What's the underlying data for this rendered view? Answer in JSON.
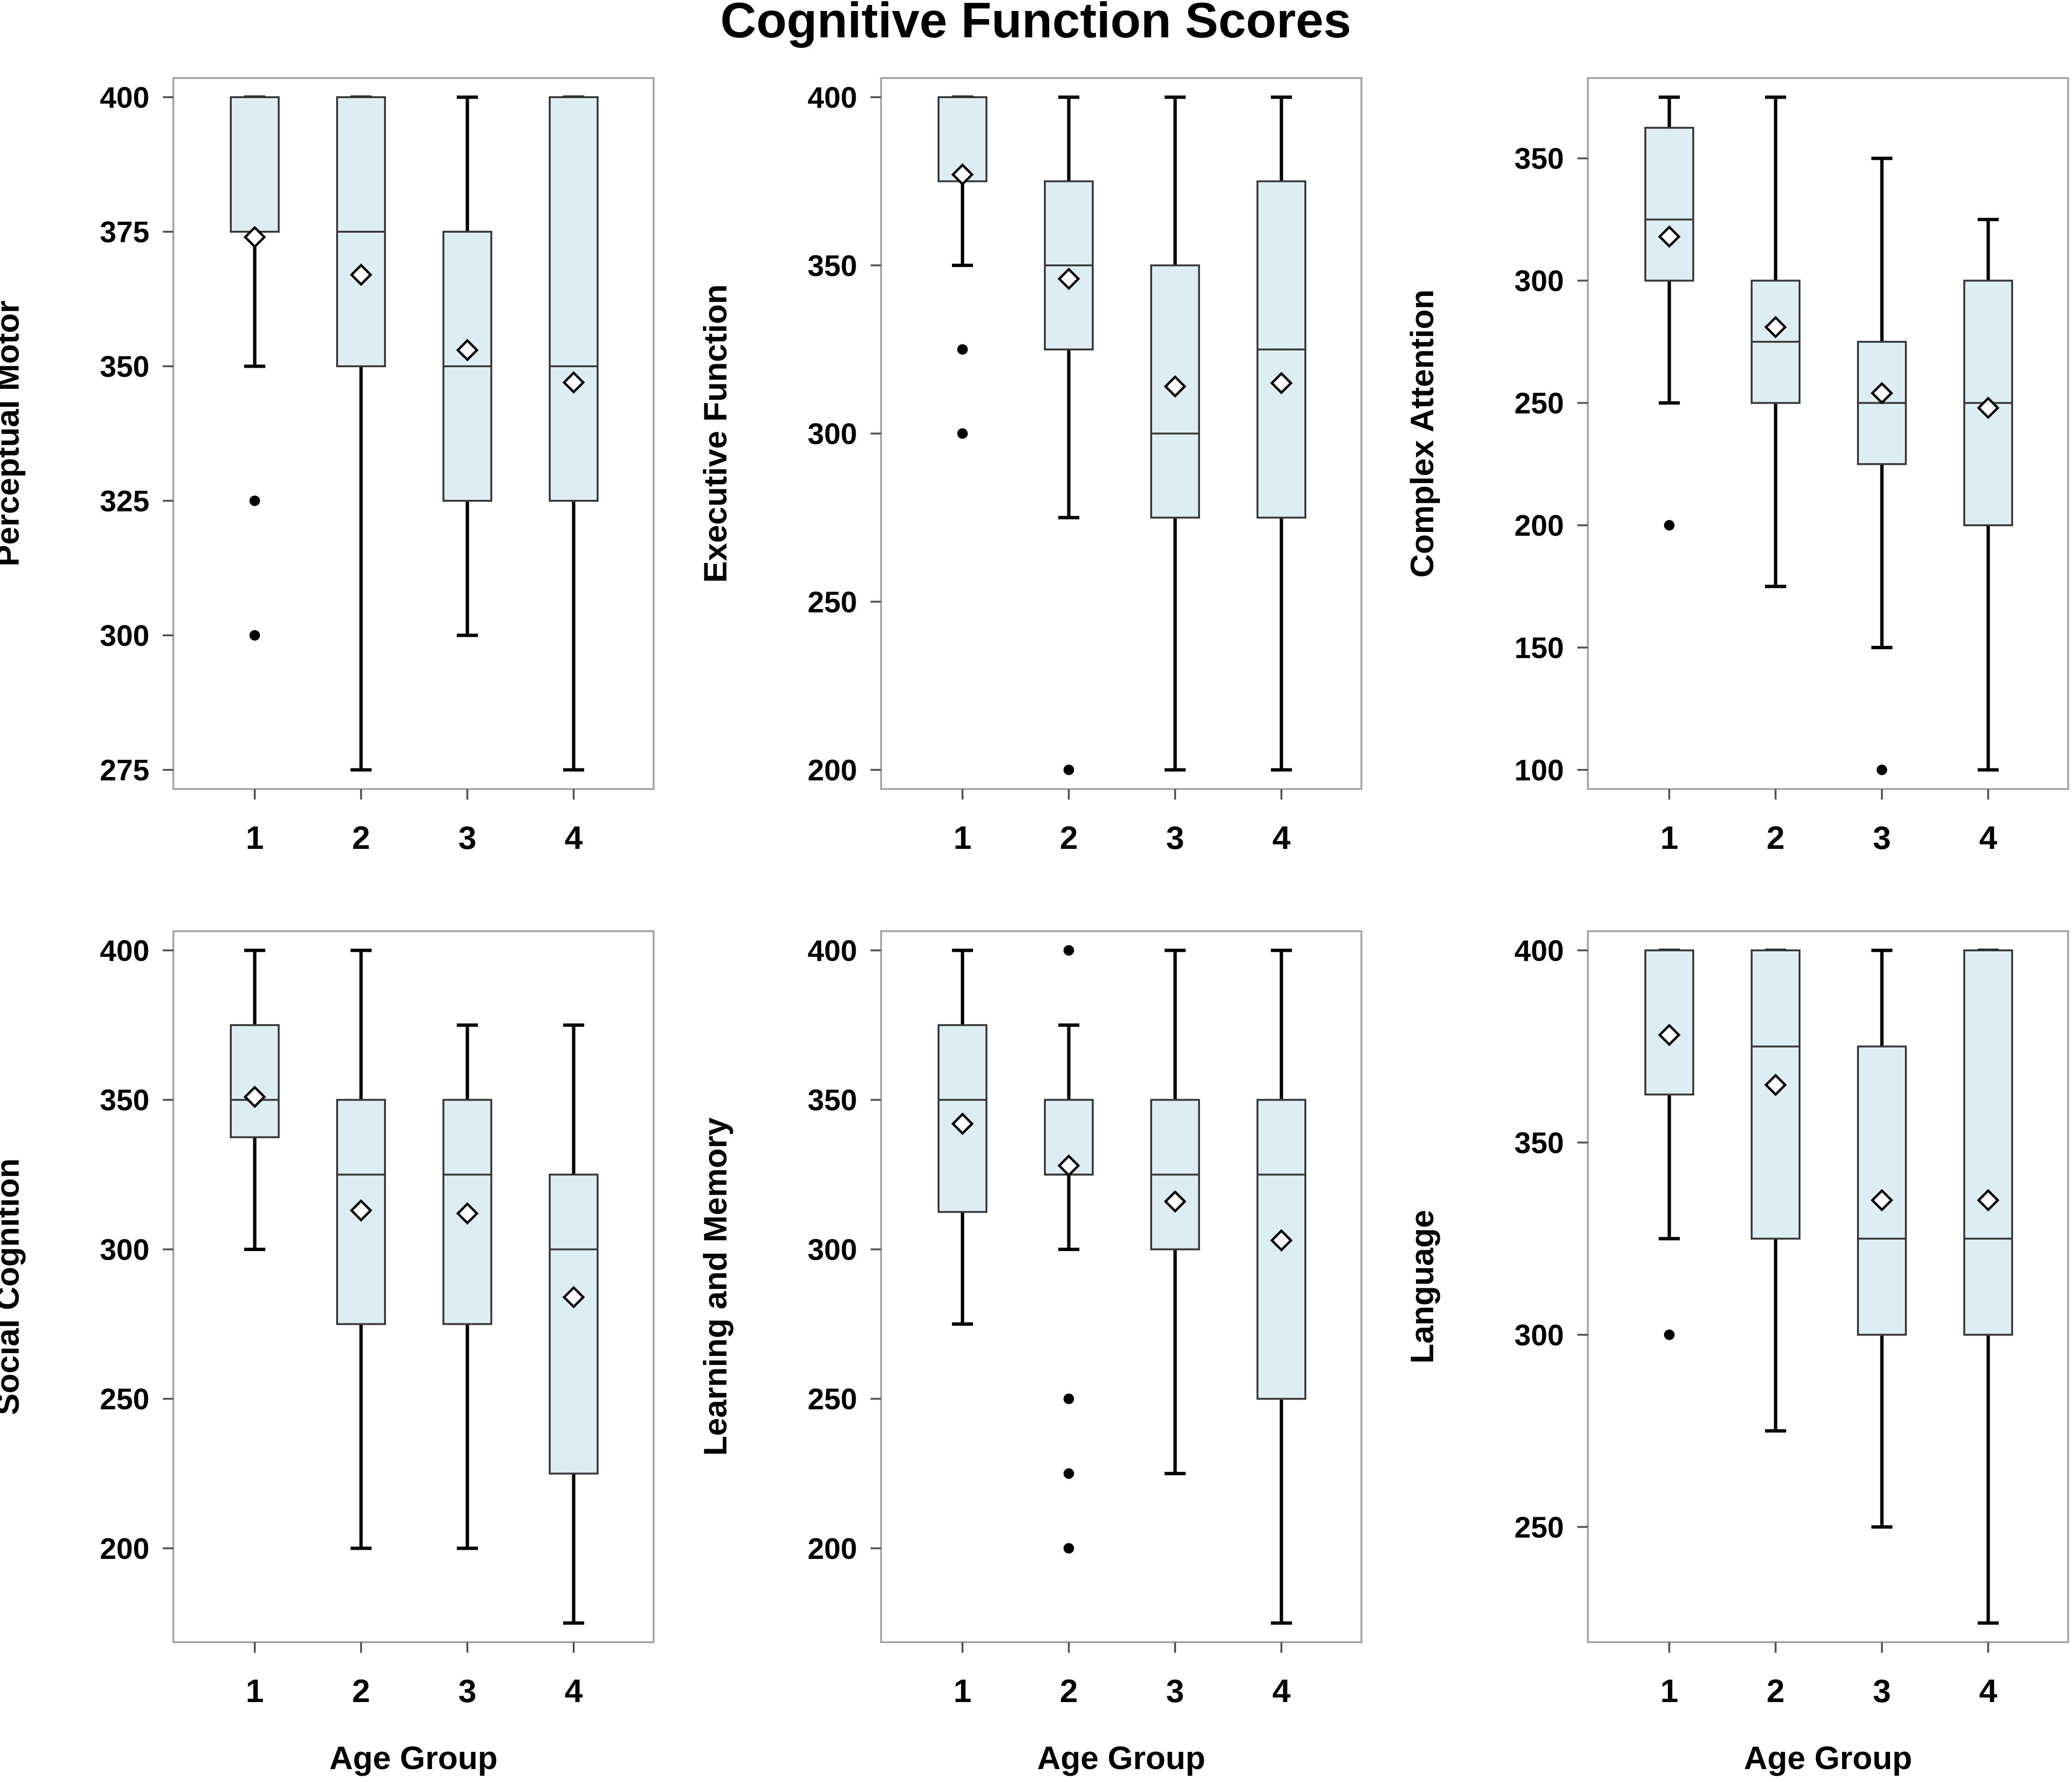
{
  "chart_data": {
    "type": "box",
    "title": "Cognitive Function Scores",
    "xlabel": "Age Group",
    "categories": [
      "1",
      "2",
      "3",
      "4"
    ],
    "panels": [
      {
        "ylabel": "Perceptual Motor",
        "ylim": [
          275,
          400
        ],
        "yticks": [
          275,
          300,
          325,
          350,
          375,
          400
        ],
        "groups": [
          {
            "group": "1",
            "whisker_low": 350,
            "q1": 375,
            "median": 400,
            "q3": 400,
            "whisker_high": 400,
            "mean": 374,
            "outliers": [
              325,
              300
            ]
          },
          {
            "group": "2",
            "whisker_low": 275,
            "q1": 350,
            "median": 375,
            "q3": 400,
            "whisker_high": 400,
            "mean": 367,
            "outliers": []
          },
          {
            "group": "3",
            "whisker_low": 300,
            "q1": 325,
            "median": 350,
            "q3": 375,
            "whisker_high": 400,
            "mean": 353,
            "outliers": []
          },
          {
            "group": "4",
            "whisker_low": 275,
            "q1": 325,
            "median": 350,
            "q3": 400,
            "whisker_high": 400,
            "mean": 347,
            "outliers": []
          }
        ]
      },
      {
        "ylabel": "Executive Function",
        "ylim": [
          200,
          400
        ],
        "yticks": [
          200,
          250,
          300,
          350,
          400
        ],
        "groups": [
          {
            "group": "1",
            "whisker_low": 350,
            "q1": 375,
            "median": 400,
            "q3": 400,
            "whisker_high": 400,
            "mean": 377,
            "outliers": [
              325,
              300
            ]
          },
          {
            "group": "2",
            "whisker_low": 275,
            "q1": 325,
            "median": 350,
            "q3": 375,
            "whisker_high": 400,
            "mean": 346,
            "outliers": [
              200
            ]
          },
          {
            "group": "3",
            "whisker_low": 200,
            "q1": 275,
            "median": 300,
            "q3": 350,
            "whisker_high": 400,
            "mean": 314,
            "outliers": []
          },
          {
            "group": "4",
            "whisker_low": 200,
            "q1": 275,
            "median": 325,
            "q3": 375,
            "whisker_high": 400,
            "mean": 315,
            "outliers": []
          }
        ]
      },
      {
        "ylabel": "Complex Attention",
        "ylim": [
          100,
          375
        ],
        "yticks": [
          100,
          150,
          200,
          250,
          300,
          350
        ],
        "groups": [
          {
            "group": "1",
            "whisker_low": 250,
            "q1": 300,
            "median": 325,
            "q3": 362.5,
            "whisker_high": 375,
            "mean": 318,
            "outliers": [
              200
            ]
          },
          {
            "group": "2",
            "whisker_low": 175,
            "q1": 250,
            "median": 275,
            "q3": 300,
            "whisker_high": 375,
            "mean": 281,
            "outliers": []
          },
          {
            "group": "3",
            "whisker_low": 150,
            "q1": 225,
            "median": 250,
            "q3": 275,
            "whisker_high": 350,
            "mean": 254,
            "outliers": [
              100
            ]
          },
          {
            "group": "4",
            "whisker_low": 100,
            "q1": 200,
            "median": 250,
            "q3": 300,
            "whisker_high": 325,
            "mean": 248,
            "outliers": []
          }
        ]
      },
      {
        "ylabel": "Social Cognition",
        "ylim": [
          175,
          400
        ],
        "yticks": [
          200,
          250,
          300,
          350,
          400
        ],
        "groups": [
          {
            "group": "1",
            "whisker_low": 300,
            "q1": 337.5,
            "median": 350,
            "q3": 375,
            "whisker_high": 400,
            "mean": 351,
            "outliers": []
          },
          {
            "group": "2",
            "whisker_low": 200,
            "q1": 275,
            "median": 325,
            "q3": 350,
            "whisker_high": 400,
            "mean": 313,
            "outliers": []
          },
          {
            "group": "3",
            "whisker_low": 200,
            "q1": 275,
            "median": 325,
            "q3": 350,
            "whisker_high": 375,
            "mean": 312,
            "outliers": []
          },
          {
            "group": "4",
            "whisker_low": 175,
            "q1": 225,
            "median": 300,
            "q3": 325,
            "whisker_high": 375,
            "mean": 284,
            "outliers": []
          }
        ]
      },
      {
        "ylabel": "Learning and Memory",
        "ylim": [
          175,
          400
        ],
        "yticks": [
          200,
          250,
          300,
          350,
          400
        ],
        "groups": [
          {
            "group": "1",
            "whisker_low": 275,
            "q1": 312.5,
            "median": 350,
            "q3": 375,
            "whisker_high": 400,
            "mean": 342,
            "outliers": []
          },
          {
            "group": "2",
            "whisker_low": 300,
            "q1": 325,
            "median": 325,
            "q3": 350,
            "whisker_high": 375,
            "mean": 328,
            "outliers": [
              400,
              250,
              225,
              200
            ]
          },
          {
            "group": "3",
            "whisker_low": 225,
            "q1": 300,
            "median": 325,
            "q3": 350,
            "whisker_high": 400,
            "mean": 316,
            "outliers": []
          },
          {
            "group": "4",
            "whisker_low": 175,
            "q1": 250,
            "median": 325,
            "q3": 350,
            "whisker_high": 400,
            "mean": 303,
            "outliers": []
          }
        ]
      },
      {
        "ylabel": "Language",
        "ylim": [
          225,
          400
        ],
        "yticks": [
          250,
          300,
          350,
          400
        ],
        "groups": [
          {
            "group": "1",
            "whisker_low": 325,
            "q1": 362.5,
            "median": 400,
            "q3": 400,
            "whisker_high": 400,
            "mean": 378,
            "outliers": [
              300
            ]
          },
          {
            "group": "2",
            "whisker_low": 275,
            "q1": 325,
            "median": 375,
            "q3": 400,
            "whisker_high": 400,
            "mean": 365,
            "outliers": []
          },
          {
            "group": "3",
            "whisker_low": 250,
            "q1": 300,
            "median": 325,
            "q3": 375,
            "whisker_high": 400,
            "mean": 335,
            "outliers": []
          },
          {
            "group": "4",
            "whisker_low": 225,
            "q1": 300,
            "median": 325,
            "q3": 400,
            "whisker_high": 400,
            "mean": 335,
            "outliers": []
          }
        ]
      }
    ],
    "colors": {
      "box_fill": "#dcedf3",
      "box_edge": "#3a3a3a",
      "whisker": "#000000",
      "frame": "#a6a6a6"
    }
  }
}
